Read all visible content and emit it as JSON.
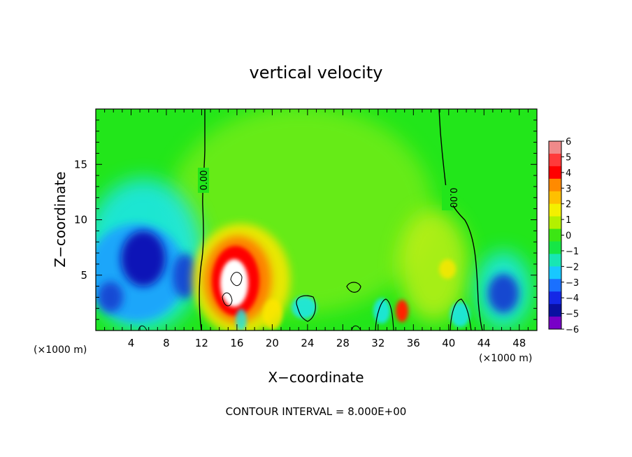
{
  "chart_data": {
    "type": "heatmap",
    "title": "vertical velocity",
    "xlabel": "X−coordinate",
    "ylabel": "Z−coordinate",
    "x_unit_left": "(×1000 m)",
    "x_unit_right": "(×1000 m)",
    "xlim": [
      0,
      50
    ],
    "ylim": [
      0,
      20
    ],
    "x_ticks": [
      4,
      8,
      12,
      16,
      20,
      24,
      28,
      32,
      36,
      40,
      44,
      48
    ],
    "y_ticks": [
      5,
      10,
      15
    ],
    "colorbar": {
      "ticks": [
        "6",
        "5",
        "4",
        "3",
        "2",
        "1",
        "0",
        "−1",
        "−2",
        "−3",
        "−4",
        "−5",
        "−6"
      ],
      "range": [
        -6,
        6
      ]
    },
    "contour_labels": [
      "0.00",
      "0.00"
    ],
    "footer": "CONTOUR INTERVAL = 8.000E+00",
    "colors": {
      "background_field": "#22e61a",
      "positive_peak": "#ff0000",
      "negative_peak": "#0a10b4",
      "saturated_positive": "#ffffff"
    }
  }
}
